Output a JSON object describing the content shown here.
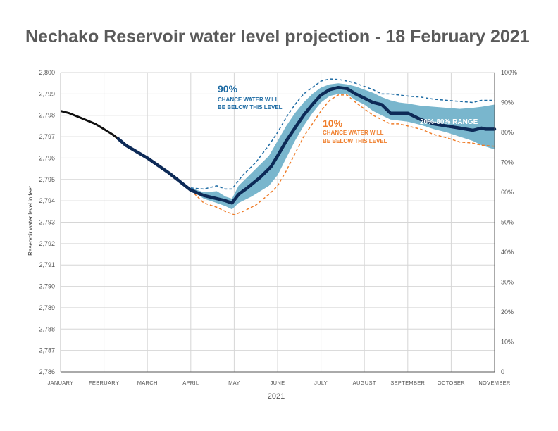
{
  "chart_data": {
    "type": "area",
    "title": "Nechako Reservoir water level projection - 18 February 2021",
    "xlabel": "2021",
    "ylabel": "Reservoir water level in feet",
    "y2label": "",
    "ylim": [
      2786,
      2800
    ],
    "yticks": [
      "2,786",
      "2,787",
      "2,788",
      "2,789",
      "2,790",
      "2,791",
      "2,792",
      "2,793",
      "2,794",
      "2,795",
      "2,796",
      "2,797",
      "2,798",
      "2,799",
      "2,800"
    ],
    "y2ticks": [
      "0",
      "10%",
      "20%",
      "30%",
      "40%",
      "50%",
      "60%",
      "70%",
      "80%",
      "90%",
      "100%"
    ],
    "months": [
      "JANUARY",
      "FEBRUARY",
      "MARCH",
      "APRIL",
      "MAY",
      "JUNE",
      "JULY",
      "AUGUST",
      "SEPTEMBER",
      "OCTOBER",
      "NOVEMBER"
    ],
    "xlim": [
      0,
      10
    ],
    "grid": true,
    "colors": {
      "observed": "#111111",
      "median": "#0d2a57",
      "p90": "#1c6aa3",
      "p10": "#ef7d2a",
      "range": "#79b6cd",
      "title": "#5a5a5a",
      "grid": "#d6d6d6"
    },
    "annotations": {
      "p90_big": "90%",
      "p90_line1": "CHANCE WATER WILL",
      "p90_line2": "BE BELOW THIS LEVEL",
      "p10_big": "10%",
      "p10_line1": "CHANCE WATER WILL",
      "p10_line2": "BE BELOW THIS LEVEL",
      "range_label": "20%-80% RANGE"
    },
    "series": [
      {
        "key": "observed",
        "x": [
          0,
          0.2,
          0.5,
          0.8,
          1.0,
          1.2,
          1.33
        ],
        "y": [
          2798.2,
          2798.1,
          2797.85,
          2797.6,
          2797.35,
          2797.1,
          2796.9
        ]
      },
      {
        "key": "median",
        "x": [
          1.33,
          1.5,
          2.0,
          2.5,
          3.0,
          3.3,
          3.6,
          3.8,
          3.95,
          4.1,
          4.3,
          4.6,
          4.85,
          5.0,
          5.2,
          5.4,
          5.6,
          5.8,
          6.0,
          6.2,
          6.4,
          6.6,
          6.8,
          7.0,
          7.2,
          7.4,
          7.6,
          7.8,
          8.0,
          8.3,
          8.6,
          8.9,
          9.2,
          9.5,
          9.7,
          9.8,
          10.0
        ],
        "y": [
          2796.9,
          2796.6,
          2796.0,
          2795.3,
          2794.5,
          2794.25,
          2794.1,
          2794.0,
          2793.9,
          2794.3,
          2794.6,
          2795.1,
          2795.6,
          2796.1,
          2796.8,
          2797.4,
          2798.0,
          2798.5,
          2798.95,
          2799.2,
          2799.3,
          2799.25,
          2799.0,
          2798.8,
          2798.6,
          2798.5,
          2798.1,
          2798.1,
          2798.1,
          2797.8,
          2797.6,
          2797.5,
          2797.4,
          2797.3,
          2797.4,
          2797.35,
          2797.35
        ]
      },
      {
        "key": "p90",
        "x": [
          3.0,
          3.3,
          3.6,
          3.8,
          3.95,
          4.2,
          4.5,
          4.8,
          5.0,
          5.2,
          5.4,
          5.6,
          5.8,
          6.0,
          6.2,
          6.4,
          6.6,
          6.8,
          7.0,
          7.2,
          7.4,
          7.6,
          7.8,
          8.0,
          8.3,
          8.6,
          8.9,
          9.2,
          9.5,
          9.7,
          10.0
        ],
        "y": [
          2794.6,
          2794.55,
          2794.7,
          2794.55,
          2794.55,
          2795.2,
          2795.8,
          2796.6,
          2797.2,
          2797.9,
          2798.5,
          2799.0,
          2799.3,
          2799.6,
          2799.7,
          2799.68,
          2799.6,
          2799.5,
          2799.35,
          2799.2,
          2799.0,
          2799.0,
          2798.95,
          2798.9,
          2798.85,
          2798.75,
          2798.7,
          2798.65,
          2798.6,
          2798.7,
          2798.7
        ]
      },
      {
        "key": "p10",
        "x": [
          3.0,
          3.3,
          3.6,
          3.8,
          4.0,
          4.2,
          4.5,
          4.8,
          5.0,
          5.2,
          5.4,
          5.6,
          5.8,
          6.0,
          6.2,
          6.4,
          6.6,
          6.8,
          7.0,
          7.2,
          7.4,
          7.6,
          7.8,
          8.0,
          8.3,
          8.6,
          8.9,
          9.2,
          9.5,
          9.7,
          10.0
        ],
        "y": [
          2794.5,
          2793.9,
          2793.7,
          2793.5,
          2793.35,
          2793.5,
          2793.8,
          2794.3,
          2794.7,
          2795.4,
          2796.2,
          2797.0,
          2797.6,
          2798.2,
          2798.7,
          2798.95,
          2798.95,
          2798.6,
          2798.3,
          2798.0,
          2797.8,
          2797.6,
          2797.6,
          2797.5,
          2797.35,
          2797.1,
          2796.95,
          2796.75,
          2796.7,
          2796.6,
          2796.55
        ]
      },
      {
        "key": "range",
        "x": [
          3.0,
          3.3,
          3.6,
          3.8,
          3.95,
          4.1,
          4.4,
          4.8,
          5.0,
          5.2,
          5.4,
          5.6,
          5.8,
          6.0,
          6.2,
          6.4,
          6.6,
          6.8,
          7.0,
          7.2,
          7.4,
          7.6,
          7.8,
          8.0,
          8.3,
          8.6,
          8.9,
          9.2,
          9.5,
          9.7,
          10.0
        ],
        "upper": [
          2794.6,
          2794.4,
          2794.45,
          2794.2,
          2794.1,
          2794.7,
          2795.3,
          2796.1,
          2796.8,
          2797.5,
          2798.1,
          2798.6,
          2799.0,
          2799.3,
          2799.45,
          2799.5,
          2799.45,
          2799.35,
          2799.2,
          2799.05,
          2798.85,
          2798.7,
          2798.6,
          2798.55,
          2798.45,
          2798.4,
          2798.35,
          2798.3,
          2798.35,
          2798.4,
          2798.5
        ],
        "lower": [
          2794.5,
          2794.1,
          2793.9,
          2793.75,
          2793.6,
          2793.9,
          2794.2,
          2794.7,
          2795.2,
          2796.0,
          2796.8,
          2797.5,
          2798.1,
          2798.6,
          2798.9,
          2799.0,
          2799.0,
          2798.7,
          2798.5,
          2798.2,
          2798.0,
          2797.8,
          2797.75,
          2797.7,
          2797.55,
          2797.35,
          2797.2,
          2797.0,
          2796.8,
          2796.6,
          2796.4
        ]
      }
    ]
  }
}
